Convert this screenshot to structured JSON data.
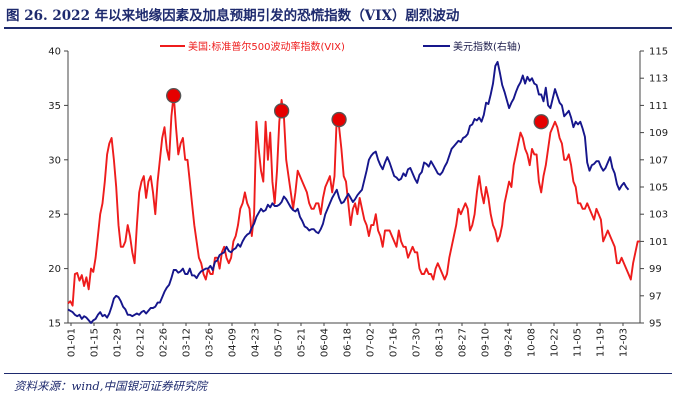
{
  "figure": {
    "title": "图 26. 2022 年以来地缘因素及加息预期引发的恐慌指数（VIX）剧烈波动",
    "source": "资料来源：wind,中国银河证券研究院"
  },
  "chart_data": {
    "type": "line",
    "x_tick_labels": [
      "01-01",
      "01-15",
      "01-29",
      "02-12",
      "02-26",
      "03-12",
      "03-26",
      "04-09",
      "04-23",
      "05-07",
      "05-21",
      "06-04",
      "06-18",
      "07-02",
      "07-16",
      "07-30",
      "08-13",
      "08-27",
      "09-10",
      "09-24",
      "10-08",
      "10-22",
      "11-05",
      "11-19",
      "12-03"
    ],
    "left_axis": {
      "min": 15,
      "max": 40,
      "ticks": [
        15,
        20,
        25,
        30,
        35,
        40
      ]
    },
    "right_axis": {
      "min": 95,
      "max": 115,
      "ticks": [
        95,
        97,
        99,
        101,
        103,
        105,
        107,
        109,
        111,
        113,
        115
      ]
    },
    "legend": {
      "position": "top",
      "items": [
        "美国:标准普尔500波动率指数(VIX)",
        "美元指数(右轴)"
      ]
    },
    "series": [
      {
        "name": "美国:标准普尔500波动率指数(VIX)",
        "axis": "left",
        "color": "#ee1c1c",
        "values": [
          16.8,
          17.0,
          16.6,
          19.5,
          19.6,
          18.9,
          19.4,
          18.4,
          19.2,
          18.1,
          20.0,
          19.7,
          21.0,
          23.0,
          25.0,
          26.0,
          28.0,
          30.5,
          31.5,
          32.0,
          30.0,
          27.5,
          24.0,
          22.0,
          22.0,
          22.5,
          24.0,
          23.0,
          21.5,
          20.5,
          24.0,
          27.0,
          28.0,
          28.5,
          26.5,
          28.0,
          28.5,
          27.0,
          25.0,
          28.0,
          30.0,
          32.0,
          33.0,
          31.0,
          30.0,
          34.0,
          36.0,
          33.0,
          30.5,
          31.5,
          32.0,
          30.0,
          30.0,
          28.0,
          26.0,
          24.0,
          22.5,
          21.0,
          20.5,
          19.5,
          19.0,
          20.0,
          19.5,
          19.5,
          21.0,
          21.0,
          20.0,
          21.5,
          22.0,
          21.0,
          20.5,
          21.0,
          22.5,
          23.0,
          24.0,
          25.5,
          26.0,
          27.0,
          26.0,
          25.5,
          23.0,
          25.0,
          33.5,
          31.0,
          29.0,
          28.0,
          33.5,
          30.0,
          32.5,
          28.0,
          26.0,
          29.0,
          33.5,
          35.5,
          34.0,
          30.0,
          28.5,
          27.0,
          25.5,
          27.0,
          29.0,
          28.5,
          28.0,
          27.5,
          27.0,
          26.0,
          25.5,
          25.5,
          26.0,
          26.0,
          25.0,
          26.5,
          27.5,
          28.0,
          28.5,
          27.0,
          28.5,
          34.0,
          33.0,
          31.0,
          28.5,
          28.0,
          26.0,
          24.0,
          25.5,
          26.0,
          25.0,
          26.5,
          25.5,
          24.5,
          24.0,
          23.0,
          24.0,
          24.0,
          25.0,
          23.5,
          23.0,
          22.0,
          23.5,
          23.5,
          23.5,
          23.0,
          22.5,
          22.0,
          23.5,
          22.5,
          22.0,
          22.0,
          21.0,
          21.5,
          22.0,
          21.5,
          21.5,
          20.0,
          19.5,
          19.5,
          20.0,
          19.5,
          19.5,
          19.0,
          20.0,
          20.5,
          20.0,
          19.5,
          19.0,
          19.5,
          21.0,
          22.0,
          23.0,
          24.0,
          25.5,
          25.0,
          25.5,
          26.0,
          25.5,
          23.5,
          24.0,
          25.0,
          27.0,
          28.5,
          27.0,
          26.0,
          27.5,
          26.5,
          25.0,
          24.0,
          23.5,
          22.5,
          23.0,
          24.0,
          26.0,
          27.0,
          28.0,
          27.5,
          29.5,
          30.5,
          31.5,
          32.5,
          32.0,
          31.0,
          30.5,
          29.5,
          31.0,
          30.5,
          30.5,
          28.0,
          27.0,
          28.5,
          29.5,
          31.0,
          32.5,
          33.0,
          33.5,
          33.0,
          32.0,
          31.5,
          30.0,
          30.0,
          30.5,
          29.5,
          28.0,
          27.5,
          26.0,
          26.0,
          25.5,
          25.5,
          26.0,
          25.5,
          25.0,
          24.5,
          25.5,
          25.0,
          24.5,
          22.5,
          23.0,
          23.5,
          23.0,
          22.5,
          22.0,
          20.5,
          20.5,
          21.0,
          20.5,
          20.0,
          19.5,
          19.0,
          20.5,
          21.5,
          22.5,
          22.5
        ]
      },
      {
        "name": "美元指数(右轴)",
        "axis": "right",
        "color": "#16168c",
        "values": [
          96.0,
          95.9,
          95.8,
          95.6,
          95.5,
          95.6,
          95.3,
          95.5,
          95.4,
          95.2,
          95.0,
          95.2,
          95.3,
          95.6,
          95.8,
          95.5,
          95.6,
          95.4,
          95.7,
          96.2,
          96.8,
          97.0,
          96.9,
          96.6,
          96.2,
          96.0,
          95.6,
          95.6,
          95.5,
          95.6,
          95.7,
          95.6,
          95.8,
          95.9,
          95.7,
          95.9,
          96.1,
          96.1,
          96.2,
          96.5,
          96.5,
          96.9,
          97.3,
          97.6,
          97.8,
          98.3,
          98.9,
          98.9,
          98.7,
          98.8,
          99.0,
          98.6,
          98.6,
          99.0,
          98.5,
          98.5,
          98.3,
          98.6,
          98.8,
          98.9,
          99.0,
          99.0,
          99.2,
          98.9,
          99.5,
          99.6,
          100.0,
          100.1,
          100.2,
          100.6,
          100.3,
          100.2,
          100.4,
          100.5,
          100.8,
          100.6,
          101.0,
          101.3,
          101.5,
          101.6,
          102.0,
          102.3,
          102.8,
          103.1,
          103.4,
          103.2,
          103.3,
          103.7,
          103.5,
          103.8,
          103.6,
          103.6,
          103.7,
          103.9,
          104.3,
          104.1,
          103.8,
          103.5,
          103.3,
          103.2,
          103.4,
          102.8,
          102.5,
          102.1,
          102.0,
          101.8,
          101.9,
          101.9,
          101.7,
          101.6,
          101.9,
          102.3,
          103.0,
          103.4,
          103.8,
          104.2,
          104.5,
          104.8,
          104.2,
          103.8,
          103.9,
          104.2,
          104.5,
          104.2,
          103.9,
          104.1,
          104.4,
          104.6,
          104.8,
          105.5,
          106.2,
          107.0,
          107.3,
          107.5,
          107.6,
          107.0,
          106.6,
          106.3,
          106.8,
          107.2,
          106.8,
          106.3,
          105.8,
          105.7,
          105.5,
          105.6,
          106.0,
          105.8,
          106.3,
          106.4,
          106.0,
          105.6,
          105.3,
          105.9,
          106.1,
          106.8,
          106.7,
          106.5,
          106.9,
          106.6,
          106.3,
          106.0,
          105.9,
          106.1,
          106.5,
          106.8,
          107.3,
          107.8,
          108.0,
          108.2,
          108.4,
          108.3,
          108.6,
          108.7,
          108.9,
          109.5,
          109.6,
          110.0,
          109.9,
          110.1,
          109.8,
          110.3,
          111.2,
          111.1,
          111.8,
          112.6,
          113.9,
          114.2,
          113.4,
          112.5,
          112.0,
          111.4,
          110.8,
          111.2,
          111.5,
          112.0,
          112.4,
          112.7,
          113.2,
          112.6,
          113.1,
          112.8,
          113.0,
          112.6,
          112.5,
          111.8,
          111.8,
          111.3,
          112.3,
          111.0,
          110.8,
          111.5,
          112.2,
          111.7,
          111.2,
          111.0,
          110.2,
          110.4,
          110.6,
          110.1,
          109.4,
          109.8,
          109.6,
          109.8,
          109.3,
          108.7,
          106.8,
          106.2,
          106.6,
          106.7,
          106.9,
          106.9,
          106.5,
          106.2,
          106.4,
          106.8,
          107.2,
          106.4,
          106.0,
          105.2,
          104.8,
          105.1,
          105.3,
          105.0,
          104.8
        ]
      }
    ],
    "markers": [
      {
        "label": "03-06",
        "value": 35.9
      },
      {
        "label": "05-09",
        "value": 34.5
      },
      {
        "label": "06-13",
        "value": 33.7
      },
      {
        "label": "10-12",
        "value": 33.5
      }
    ]
  }
}
